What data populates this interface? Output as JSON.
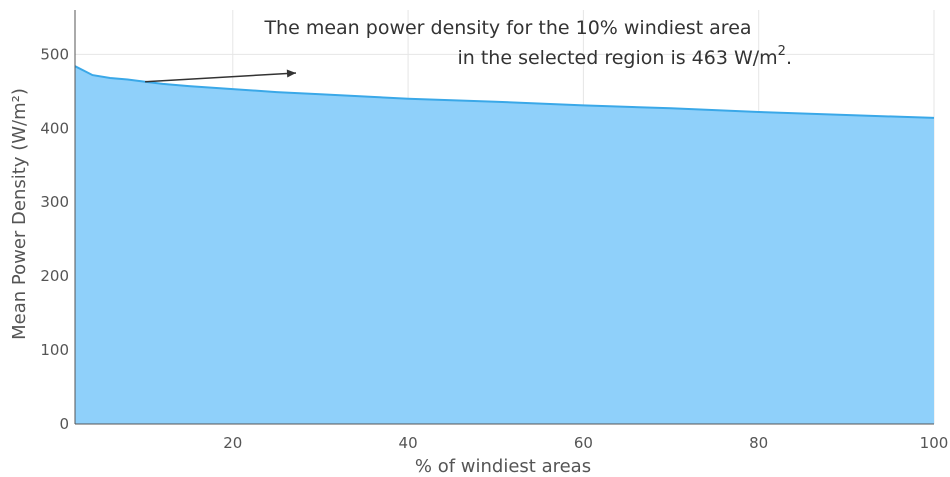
{
  "chart_data": {
    "type": "area",
    "title": "",
    "xlabel": "% of windiest areas",
    "ylabel": "Mean Power Density (W/m²)",
    "xlim": [
      2,
      100
    ],
    "ylim": [
      0,
      560
    ],
    "x_ticks": [
      20,
      40,
      60,
      80,
      100
    ],
    "y_ticks": [
      0,
      100,
      200,
      300,
      400,
      500
    ],
    "grid": true,
    "legend": "none",
    "series": [
      {
        "color": "#3aa8e8",
        "fill_color": "#8fd0fa",
        "x": [
          2,
          3,
          4,
          6,
          8,
          10,
          12,
          15,
          20,
          25,
          30,
          40,
          50,
          60,
          70,
          80,
          90,
          100
        ],
        "values": [
          484,
          478,
          472,
          468,
          466,
          463,
          460,
          457,
          453,
          449,
          446,
          440,
          436,
          431,
          427,
          422,
          418,
          414
        ]
      }
    ],
    "annotation": {
      "line1": "The mean power density for the 10% windiest area",
      "line2_prefix": "in the selected region is 463 W/m",
      "line2_sup": "2",
      "line2_suffix": ".",
      "point_x": 10,
      "point_y": 463
    }
  }
}
